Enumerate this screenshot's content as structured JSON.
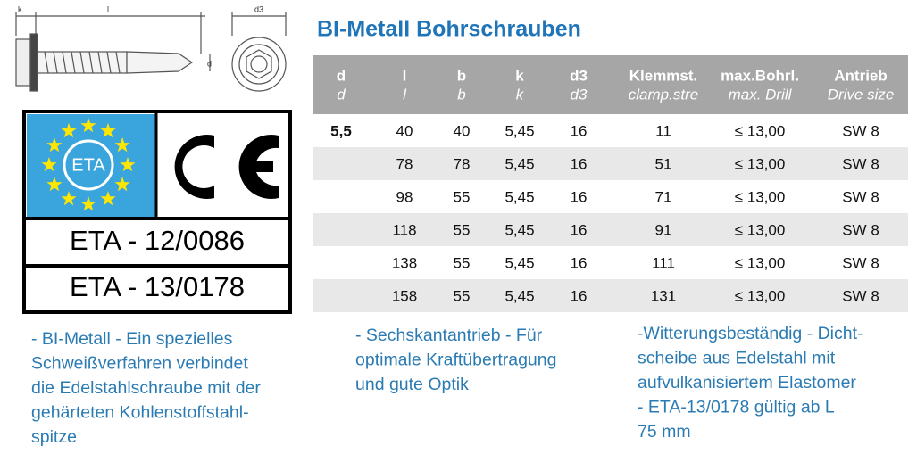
{
  "drawing": {
    "labels": [
      "k",
      "l",
      "d",
      "d3"
    ]
  },
  "logo": {
    "eta_mark": "ETA",
    "approvals": [
      "ETA - 12/0086",
      "ETA - 13/0178"
    ]
  },
  "title": "BI-Metall Bohrschrauben",
  "table": {
    "header": [
      [
        "d",
        "d"
      ],
      [
        "l",
        "l"
      ],
      [
        "b",
        "b"
      ],
      [
        "k",
        "k"
      ],
      [
        "d3",
        "d3"
      ],
      [
        "Klemmst.",
        "clamp.stre"
      ],
      [
        "max.Bohrl.",
        "max. Drill"
      ],
      [
        "Antrieb",
        "Drive size"
      ]
    ],
    "rows": [
      [
        "5,5",
        "40",
        "40",
        "5,45",
        "16",
        "11",
        "≤ 13,00",
        "SW 8"
      ],
      [
        null,
        "78",
        "78",
        "5,45",
        "16",
        "51",
        "≤ 13,00",
        "SW 8"
      ],
      [
        null,
        "98",
        "55",
        "5,45",
        "16",
        "71",
        "≤ 13,00",
        "SW 8"
      ],
      [
        null,
        "118",
        "55",
        "5,45",
        "16",
        "91",
        "≤ 13,00",
        "SW 8"
      ],
      [
        null,
        "138",
        "55",
        "5,45",
        "16",
        "111",
        "≤ 13,00",
        "SW 8"
      ],
      [
        null,
        "158",
        "55",
        "5,45",
        "16",
        "131",
        "≤ 13,00",
        "SW 8"
      ]
    ]
  },
  "notes": [
    [
      "- BI-Metall - Ein spezielles",
      "Schweißverfahren verbindet",
      "die Edelstahlschraube mit der",
      "gehärteten Kohlenstoffstahl-",
      "spitze"
    ],
    [
      "- Sechskantantrieb - Für",
      "optimale Kraftübertragung",
      "und gute Optik"
    ],
    [
      "-Witterungsbeständig - Dicht-",
      "scheibe aus Edelstahl mit",
      "aufvulkanisiertem Elastomer",
      "- ETA-13/0178 gültig ab L",
      "75 mm"
    ]
  ]
}
